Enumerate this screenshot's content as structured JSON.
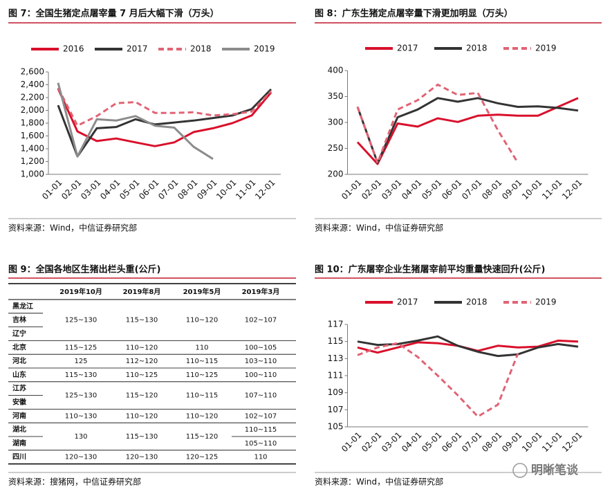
{
  "chart_data": [
    {
      "type": "line",
      "title": "图 7：全国生猪定点屠宰量 7 月后大幅下滑（万头）",
      "source": "资料来源：Wind，中信证券研究部",
      "categories": [
        "01-01",
        "02-01",
        "03-01",
        "04-01",
        "05-01",
        "06-01",
        "07-01",
        "08-01",
        "09-01",
        "10-01",
        "11-01",
        "12-01"
      ],
      "ylim": [
        1000,
        2600
      ],
      "yticks": [
        {
          "value": 1000,
          "label": "1,000"
        },
        {
          "value": 1200,
          "label": "1,200"
        },
        {
          "value": 1400,
          "label": "1,400"
        },
        {
          "value": 1600,
          "label": "1,600"
        },
        {
          "value": 1800,
          "label": "1,800"
        },
        {
          "value": 2000,
          "label": "2,000"
        },
        {
          "value": 2200,
          "label": "2,200"
        },
        {
          "value": 2400,
          "label": "2,400"
        },
        {
          "value": 2600,
          "label": "2,600"
        }
      ],
      "legend": "top",
      "series": [
        {
          "name": "2016",
          "color": "#d9102b",
          "style": "solid",
          "values": [
            2340,
            1670,
            1520,
            1560,
            1500,
            1440,
            1500,
            1660,
            1720,
            1800,
            1920,
            2280
          ]
        },
        {
          "name": "2017",
          "color": "#333333",
          "style": "solid",
          "values": [
            2080,
            1280,
            1720,
            1740,
            1860,
            1780,
            1810,
            1840,
            1880,
            1920,
            2020,
            2330
          ]
        },
        {
          "name": "2018",
          "color": "#e06474",
          "style": "dashed",
          "values": [
            2350,
            1760,
            1910,
            2110,
            2130,
            1960,
            1960,
            1970,
            1920,
            1940,
            1980,
            2300
          ]
        },
        {
          "name": "2019",
          "color": "#8c8c8c",
          "style": "solid",
          "values": [
            2430,
            1280,
            1860,
            1840,
            1910,
            1760,
            1730,
            1430,
            1240,
            null,
            null,
            null
          ]
        }
      ]
    },
    {
      "type": "line",
      "title": "图 8：广东生猪定点屠宰量下滑更加明显（万头）",
      "source": "资料来源：Wind，中信证券研究部",
      "categories": [
        "01-01",
        "02-01",
        "03-01",
        "04-01",
        "05-01",
        "06-01",
        "07-01",
        "08-01",
        "09-01",
        "10-01",
        "11-01",
        "12-01"
      ],
      "ylim": [
        200,
        400
      ],
      "yticks": [
        200,
        250,
        300,
        350,
        400
      ],
      "legend": "top",
      "series": [
        {
          "name": "2017",
          "color": "#d9102b",
          "style": "solid",
          "values": [
            262,
            220,
            298,
            292,
            308,
            301,
            313,
            315,
            313,
            313,
            330,
            347
          ]
        },
        {
          "name": "2018",
          "color": "#333333",
          "style": "solid",
          "values": [
            330,
            222,
            310,
            325,
            347,
            340,
            347,
            337,
            330,
            331,
            328,
            323
          ]
        },
        {
          "name": "2019",
          "color": "#e06474",
          "style": "dashed",
          "values": [
            330,
            222,
            325,
            343,
            373,
            353,
            357,
            285,
            222,
            null,
            null,
            null
          ]
        }
      ]
    },
    {
      "type": "line",
      "title": "图 10：广东屠宰企业生猪屠宰前平均重量快速回升(公斤)",
      "source": "资料来源：Wind，中信证券研究部",
      "categories": [
        "01-01",
        "02-01",
        "03-01",
        "04-01",
        "05-01",
        "06-01",
        "07-01",
        "08-01",
        "09-01",
        "10-01",
        "11-01",
        "12-01"
      ],
      "ylim": [
        105,
        117
      ],
      "yticks": [
        105,
        107,
        109,
        111,
        113,
        115,
        117
      ],
      "legend": "top",
      "series": [
        {
          "name": "2017",
          "color": "#d9102b",
          "style": "solid",
          "values": [
            114.3,
            113.7,
            114.3,
            114.9,
            114.8,
            114.5,
            113.9,
            114.5,
            114.3,
            114.4,
            115.1,
            115.0
          ]
        },
        {
          "name": "2018",
          "color": "#333333",
          "style": "solid",
          "values": [
            115.0,
            114.6,
            114.7,
            115.1,
            115.6,
            114.5,
            113.8,
            113.3,
            113.5,
            114.3,
            114.7,
            114.4
          ]
        },
        {
          "name": "2019",
          "color": "#e06474",
          "style": "dashed",
          "values": [
            113.4,
            114.3,
            114.8,
            113.2,
            111.0,
            108.7,
            106.2,
            107.6,
            113.6,
            null,
            null,
            null
          ]
        }
      ]
    }
  ],
  "table": {
    "title": "图 9：全国各地区生猪出栏头重(公斤)",
    "source": "资料来源：搜猪网，中信证券研究部",
    "columns": [
      "2019年10月",
      "2019年8月",
      "2019年5月",
      "2019年3月"
    ],
    "rows": [
      {
        "regions": [
          "黑龙江",
          "吉林",
          "辽宁"
        ],
        "cells": [
          "125~130",
          "115~130",
          "110~120",
          "102~107"
        ]
      },
      {
        "regions": [
          "北京"
        ],
        "cells": [
          "115~125",
          "110~120",
          "110",
          "100~105"
        ]
      },
      {
        "regions": [
          "河北"
        ],
        "cells": [
          "125",
          "112~120",
          "110~115",
          "103~110"
        ]
      },
      {
        "regions": [
          "山东"
        ],
        "cells": [
          "115~130",
          "110~125",
          "110~125",
          "100~110"
        ]
      },
      {
        "regions": [
          "江苏",
          "安徽"
        ],
        "cells": [
          "125~130",
          "115~120",
          "110~115",
          "107~110"
        ]
      },
      {
        "regions": [
          "河南"
        ],
        "cells": [
          "110~130",
          "110~120",
          "110~120",
          "102~107"
        ]
      },
      {
        "regions": [
          "湖北",
          "湖南"
        ],
        "cells": [
          "130",
          "115~130",
          "115~120",
          [
            "110~115",
            "105~110"
          ]
        ]
      },
      {
        "regions": [
          "四川"
        ],
        "cells": [
          "120~130",
          "120~130",
          "120~125",
          "110"
        ]
      }
    ]
  },
  "watermark": "明晰笔谈"
}
